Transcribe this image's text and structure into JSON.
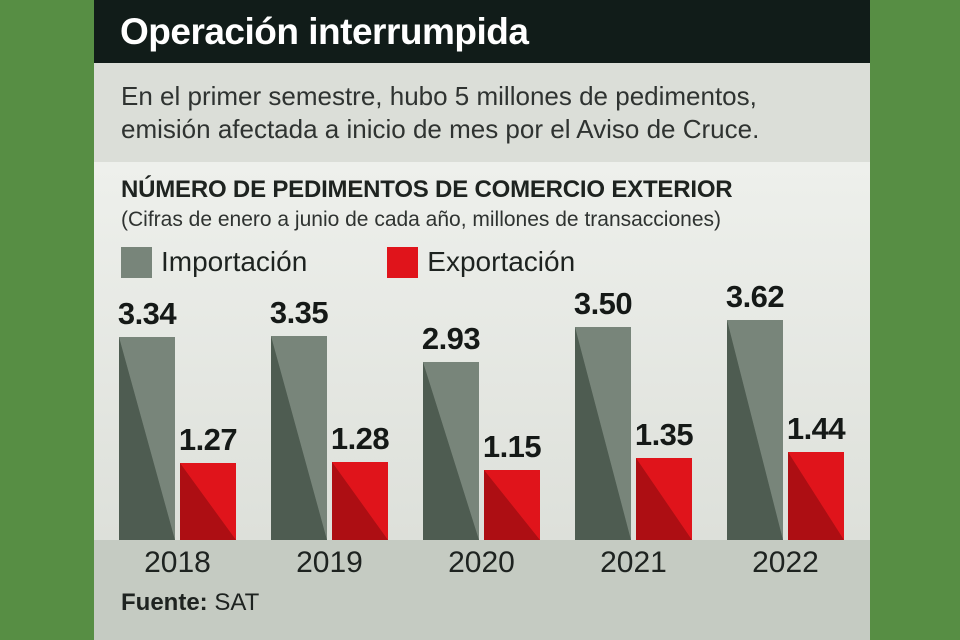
{
  "colors": {
    "frame_green": "#578e44",
    "header_bg": "#111c19",
    "lede_bg": "#dbded8",
    "chart_bg_top": "#eef0ec",
    "chart_bg_bottom": "#dde0da",
    "footer_bg": "#c5cbc2",
    "import_light": "#78857a",
    "import_dark": "#4e5c51",
    "export_light": "#e0141b",
    "export_dark": "#ad0e13",
    "text_dark": "#1e2320",
    "text_body": "#2f3331"
  },
  "header": {
    "title": "Operación interrumpida"
  },
  "lede": {
    "line1": "En el primer semestre, hubo 5 millones de pedimentos,",
    "line2": "emisión afectada a inicio de mes por el Aviso de Cruce."
  },
  "chart": {
    "legend": [
      {
        "label": "Importación",
        "swatch": "import"
      },
      {
        "label": "Exportación",
        "swatch": "export"
      }
    ]
  },
  "chart_data": {
    "type": "bar",
    "title": "NÚMERO DE PEDIMENTOS DE COMERCIO EXTERIOR",
    "subtitle": "(Cifras de enero a junio de cada año, millones de transacciones)",
    "categories": [
      "2018",
      "2019",
      "2020",
      "2021",
      "2022"
    ],
    "series": [
      {
        "name": "Importación",
        "values": [
          3.34,
          3.35,
          2.93,
          3.5,
          3.62
        ]
      },
      {
        "name": "Exportación",
        "values": [
          1.27,
          1.28,
          1.15,
          1.35,
          1.44
        ]
      }
    ],
    "unit": "millones de transacciones",
    "ylim": [
      0,
      3.9
    ],
    "value_labels": true,
    "grid": false,
    "legend_position": "top-left"
  },
  "footer": {
    "source_label": "Fuente:",
    "source_value": "SAT"
  }
}
